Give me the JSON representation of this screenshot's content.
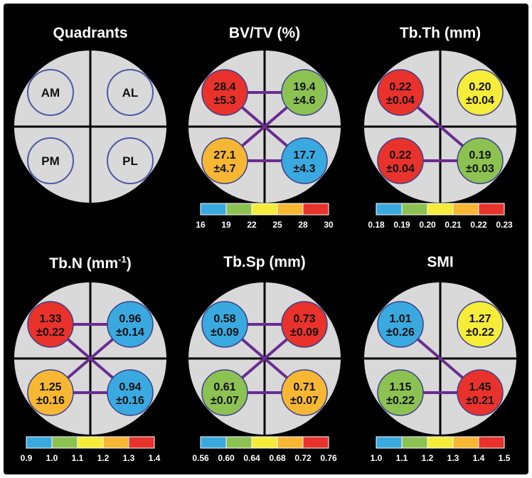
{
  "colors": {
    "background": "#000000",
    "disc": "#d9d9d9",
    "divider": "#000000",
    "connector": "#6a2c91",
    "quadrant_outline": "#4a5aa8",
    "scale": [
      "#3aa9e0",
      "#8cc252",
      "#f6ec3a",
      "#f7b733",
      "#e8322b"
    ]
  },
  "panels": [
    {
      "id": "quadrants",
      "title": "Quadrants",
      "labels": [
        "AM",
        "AL",
        "PM",
        "PL"
      ]
    },
    {
      "id": "bvtv",
      "title": "BV/TV (%)",
      "cells": [
        {
          "pos": "AM",
          "mean": "28.4",
          "sd": "±5.3",
          "level": 4
        },
        {
          "pos": "AL",
          "mean": "19.4",
          "sd": "±4.6",
          "level": 1
        },
        {
          "pos": "PM",
          "mean": "27.1",
          "sd": "±4.7",
          "level": 3
        },
        {
          "pos": "PL",
          "mean": "17.7",
          "sd": "±4.3",
          "level": 0
        }
      ],
      "links": [
        [
          "AM",
          "AL"
        ],
        [
          "AM",
          "PL"
        ],
        [
          "AL",
          "PM"
        ],
        [
          "PM",
          "PL"
        ]
      ],
      "scale_ticks": [
        "16",
        "19",
        "22",
        "25",
        "28",
        "30"
      ]
    },
    {
      "id": "tbth",
      "title": "Tb.Th (mm)",
      "cells": [
        {
          "pos": "AM",
          "mean": "0.22",
          "sd": "±0.04",
          "level": 4
        },
        {
          "pos": "AL",
          "mean": "0.20",
          "sd": "±0.04",
          "level": 2
        },
        {
          "pos": "PM",
          "mean": "0.22",
          "sd": "±0.04",
          "level": 4
        },
        {
          "pos": "PL",
          "mean": "0.19",
          "sd": "±0.03",
          "level": 1
        }
      ],
      "links": [
        [
          "AM",
          "PL"
        ],
        [
          "PM",
          "PL"
        ]
      ],
      "scale_ticks": [
        "0.18",
        "0.19",
        "0.20",
        "0.21",
        "0.22",
        "0.23"
      ]
    },
    {
      "id": "tbn",
      "title": "Tb.N (mm",
      "title_sup": "-1",
      "title_suffix": ")",
      "cells": [
        {
          "pos": "AM",
          "mean": "1.33",
          "sd": "±0.22",
          "level": 4
        },
        {
          "pos": "AL",
          "mean": "0.96",
          "sd": "±0.14",
          "level": 0
        },
        {
          "pos": "PM",
          "mean": "1.25",
          "sd": "±0.16",
          "level": 3
        },
        {
          "pos": "PL",
          "mean": "0.94",
          "sd": "±0.16",
          "level": 0
        }
      ],
      "links": [
        [
          "AM",
          "AL"
        ],
        [
          "AM",
          "PL"
        ],
        [
          "AL",
          "PM"
        ],
        [
          "PM",
          "PL"
        ]
      ],
      "scale_ticks": [
        "0.9",
        "1.0",
        "1.1",
        "1.2",
        "1.3",
        "1.4"
      ]
    },
    {
      "id": "tbsp",
      "title": "Tb.Sp (mm)",
      "cells": [
        {
          "pos": "AM",
          "mean": "0.58",
          "sd": "±0.09",
          "level": 0
        },
        {
          "pos": "AL",
          "mean": "0.73",
          "sd": "±0.09",
          "level": 4
        },
        {
          "pos": "PM",
          "mean": "0.61",
          "sd": "±0.07",
          "level": 1
        },
        {
          "pos": "PL",
          "mean": "0.71",
          "sd": "±0.07",
          "level": 3
        }
      ],
      "links": [
        [
          "AM",
          "AL"
        ],
        [
          "AM",
          "PL"
        ],
        [
          "AL",
          "PM"
        ],
        [
          "PM",
          "PL"
        ]
      ],
      "scale_ticks": [
        "0.56",
        "0.60",
        "0.64",
        "0.68",
        "0.72",
        "0.76"
      ]
    },
    {
      "id": "smi",
      "title": "SMI",
      "cells": [
        {
          "pos": "AM",
          "mean": "1.01",
          "sd": "±0.26",
          "level": 0
        },
        {
          "pos": "AL",
          "mean": "1.27",
          "sd": "±0.22",
          "level": 2
        },
        {
          "pos": "PM",
          "mean": "1.15",
          "sd": "±0.22",
          "level": 1
        },
        {
          "pos": "PL",
          "mean": "1.45",
          "sd": "±0.21",
          "level": 4
        }
      ],
      "links": [
        [
          "AM",
          "PL"
        ],
        [
          "PM",
          "PL"
        ]
      ],
      "scale_ticks": [
        "1.0",
        "1.1",
        "1.2",
        "1.3",
        "1.4",
        "1.5"
      ]
    }
  ]
}
